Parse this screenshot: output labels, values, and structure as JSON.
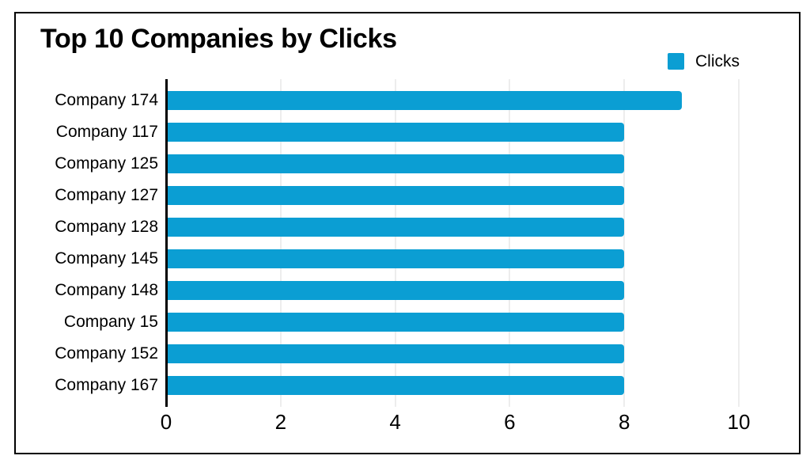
{
  "window": {
    "background": "#ffffff",
    "frame_border_color": "#000000"
  },
  "header": {
    "title": "Top 10 Companies by Clicks"
  },
  "legend": {
    "position": "top-right",
    "items": [
      {
        "label": "Clicks",
        "color": "#0b9ed3"
      }
    ]
  },
  "chart_data": {
    "type": "bar",
    "orientation": "horizontal",
    "title": "Top 10 Companies by Clicks",
    "categories": [
      "Company 174",
      "Company 117",
      "Company 125",
      "Company 127",
      "Company 128",
      "Company 145",
      "Company 148",
      "Company 15",
      "Company 152",
      "Company 167"
    ],
    "series": [
      {
        "name": "Clicks",
        "color": "#0b9ed3",
        "values": [
          9,
          8,
          8,
          8,
          8,
          8,
          8,
          8,
          8,
          8
        ]
      }
    ],
    "xlabel": "",
    "ylabel": "",
    "xlim": [
      0,
      10
    ],
    "xticks": [
      0,
      2,
      4,
      6,
      8,
      10
    ],
    "grid": true,
    "gridline_color": "#ededed",
    "axis_line_color": "#000000",
    "legend_position": "top-right"
  }
}
